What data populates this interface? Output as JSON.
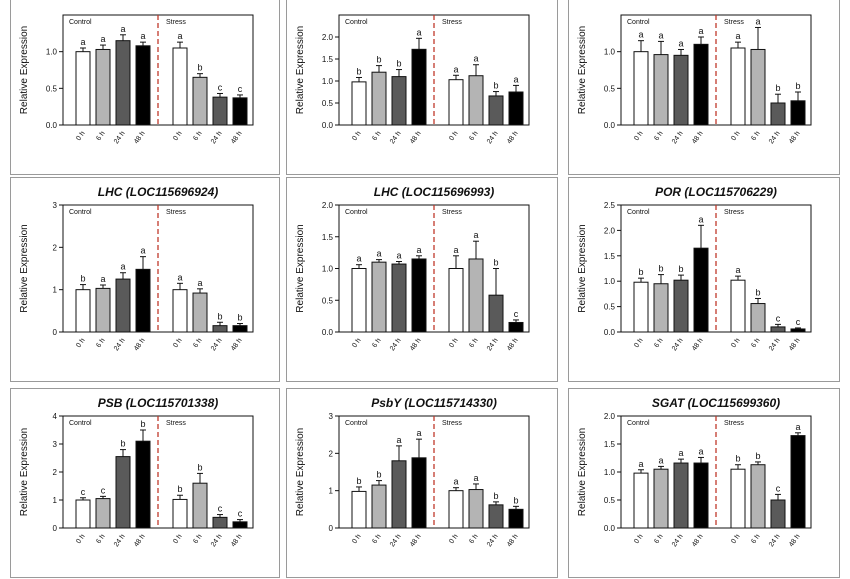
{
  "figure": {
    "colors": {
      "fill": [
        "#ffffff",
        "#b4b4b4",
        "#5a5a5a",
        "#000000"
      ],
      "divider": "#c0392b",
      "axis": "#111111"
    }
  },
  "chart_data": [
    {
      "type": "bar",
      "title": "",
      "ylabel": "Relative Expression",
      "ylim": [
        0,
        1.5
      ],
      "yticks": [
        "0.0",
        "0.5",
        "1.0"
      ],
      "groups": [
        {
          "name": "Control",
          "categories": [
            "0 h",
            "6 h",
            "24 h",
            "48 h"
          ],
          "values": [
            1.0,
            1.03,
            1.15,
            1.08
          ],
          "errors": [
            0.05,
            0.06,
            0.08,
            0.05
          ],
          "letters": [
            "a",
            "a",
            "a",
            "a"
          ]
        },
        {
          "name": "Stress",
          "categories": [
            "0 h",
            "6 h",
            "24 h",
            "48 h"
          ],
          "values": [
            1.05,
            0.65,
            0.38,
            0.37
          ],
          "errors": [
            0.08,
            0.05,
            0.05,
            0.04
          ],
          "letters": [
            "a",
            "b",
            "c",
            "c"
          ]
        }
      ]
    },
    {
      "type": "bar",
      "title": "",
      "ylabel": "Relative Expression",
      "ylim": [
        0,
        2.5
      ],
      "yticks": [
        "0.0",
        "0.5",
        "1.0",
        "1.5",
        "2.0"
      ],
      "groups": [
        {
          "name": "Control",
          "categories": [
            "0 h",
            "6 h",
            "24 h",
            "48 h"
          ],
          "values": [
            0.98,
            1.2,
            1.1,
            1.72
          ],
          "errors": [
            0.1,
            0.15,
            0.16,
            0.25
          ],
          "letters": [
            "b",
            "b",
            "b",
            "a"
          ]
        },
        {
          "name": "Stress",
          "categories": [
            "0 h",
            "6 h",
            "24 h",
            "48 h"
          ],
          "values": [
            1.03,
            1.12,
            0.66,
            0.75
          ],
          "errors": [
            0.1,
            0.25,
            0.1,
            0.15
          ],
          "letters": [
            "a",
            "a",
            "b",
            "a"
          ]
        }
      ]
    },
    {
      "type": "bar",
      "title": "",
      "ylabel": "Relative Expression",
      "ylim": [
        0,
        1.5
      ],
      "yticks": [
        "0.0",
        "0.5",
        "1.0"
      ],
      "groups": [
        {
          "name": "Control",
          "categories": [
            "0 h",
            "6 h",
            "24 h",
            "48 h"
          ],
          "values": [
            1.0,
            0.96,
            0.95,
            1.1
          ],
          "errors": [
            0.15,
            0.18,
            0.08,
            0.1
          ],
          "letters": [
            "a",
            "a",
            "a",
            "a"
          ]
        },
        {
          "name": "Stress",
          "categories": [
            "0 h",
            "6 h",
            "24 h",
            "48 h"
          ],
          "values": [
            1.05,
            1.03,
            0.3,
            0.33
          ],
          "errors": [
            0.08,
            0.3,
            0.12,
            0.12
          ],
          "letters": [
            "a",
            "a",
            "b",
            "b"
          ]
        }
      ]
    },
    {
      "type": "bar",
      "title": "LHC (LOC115696924)",
      "ylabel": "Relative Expression",
      "ylim": [
        0,
        3
      ],
      "yticks": [
        "0",
        "1",
        "2",
        "3"
      ],
      "groups": [
        {
          "name": "Control",
          "categories": [
            "0 h",
            "6 h",
            "24 h",
            "48 h"
          ],
          "values": [
            1.0,
            1.03,
            1.25,
            1.48
          ],
          "errors": [
            0.12,
            0.08,
            0.15,
            0.3
          ],
          "letters": [
            "b",
            "a",
            "a",
            "a"
          ]
        },
        {
          "name": "Stress",
          "categories": [
            "0 h",
            "6 h",
            "24 h",
            "48 h"
          ],
          "values": [
            1.0,
            0.92,
            0.15,
            0.15
          ],
          "errors": [
            0.15,
            0.1,
            0.08,
            0.05
          ],
          "letters": [
            "a",
            "a",
            "b",
            "b"
          ]
        }
      ]
    },
    {
      "type": "bar",
      "title": "LHC (LOC115696993)",
      "ylabel": "Relative Expression",
      "ylim": [
        0,
        2.0
      ],
      "yticks": [
        "0.0",
        "0.5",
        "1.0",
        "1.5",
        "2.0"
      ],
      "groups": [
        {
          "name": "Control",
          "categories": [
            "0 h",
            "6 h",
            "24 h",
            "48 h"
          ],
          "values": [
            1.0,
            1.1,
            1.07,
            1.15
          ],
          "errors": [
            0.06,
            0.04,
            0.04,
            0.05
          ],
          "letters": [
            "a",
            "a",
            "a",
            "a"
          ]
        },
        {
          "name": "Stress",
          "categories": [
            "0 h",
            "6 h",
            "24 h",
            "48 h"
          ],
          "values": [
            1.0,
            1.15,
            0.58,
            0.15
          ],
          "errors": [
            0.2,
            0.28,
            0.42,
            0.04
          ],
          "letters": [
            "a",
            "a",
            "b",
            "c"
          ]
        }
      ]
    },
    {
      "type": "bar",
      "title": "POR (LOC115706229)",
      "ylabel": "Relative Expression",
      "ylim": [
        0,
        2.5
      ],
      "yticks": [
        "0.0",
        "0.5",
        "1.0",
        "1.5",
        "2.0",
        "2.5"
      ],
      "groups": [
        {
          "name": "Control",
          "categories": [
            "0 h",
            "6 h",
            "24 h",
            "48 h"
          ],
          "values": [
            0.98,
            0.95,
            1.02,
            1.65
          ],
          "errors": [
            0.08,
            0.18,
            0.1,
            0.45
          ],
          "letters": [
            "b",
            "b",
            "b",
            "a"
          ]
        },
        {
          "name": "Stress",
          "categories": [
            "0 h",
            "6 h",
            "24 h",
            "48 h"
          ],
          "values": [
            1.02,
            0.56,
            0.1,
            0.06
          ],
          "errors": [
            0.08,
            0.1,
            0.05,
            0.02
          ],
          "letters": [
            "a",
            "b",
            "c",
            "c"
          ]
        }
      ]
    },
    {
      "type": "bar",
      "title": "PSB (LOC115701338)",
      "ylabel": "Relative Expression",
      "ylim": [
        0,
        4
      ],
      "yticks": [
        "0",
        "1",
        "2",
        "3",
        "4"
      ],
      "groups": [
        {
          "name": "Control",
          "categories": [
            "0 h",
            "6 h",
            "24 h",
            "48 h"
          ],
          "values": [
            1.0,
            1.05,
            2.55,
            3.1
          ],
          "errors": [
            0.08,
            0.08,
            0.25,
            0.4
          ],
          "letters": [
            "c",
            "c",
            "b",
            "b"
          ]
        },
        {
          "name": "Stress",
          "categories": [
            "0 h",
            "6 h",
            "24 h",
            "48 h"
          ],
          "values": [
            1.02,
            1.6,
            0.38,
            0.22
          ],
          "errors": [
            0.15,
            0.35,
            0.1,
            0.08
          ],
          "letters": [
            "b",
            "b",
            "c",
            "c"
          ]
        }
      ]
    },
    {
      "type": "bar",
      "title": "PsbY (LOC115714330)",
      "ylabel": "Relative Expression",
      "ylim": [
        0,
        3
      ],
      "yticks": [
        "0",
        "1",
        "2",
        "3"
      ],
      "groups": [
        {
          "name": "Control",
          "categories": [
            "0 h",
            "6 h",
            "24 h",
            "48 h"
          ],
          "values": [
            0.98,
            1.15,
            1.8,
            1.88
          ],
          "errors": [
            0.12,
            0.12,
            0.4,
            0.5
          ],
          "letters": [
            "b",
            "b",
            "a",
            "a"
          ]
        },
        {
          "name": "Stress",
          "categories": [
            "0 h",
            "6 h",
            "24 h",
            "48 h"
          ],
          "values": [
            1.0,
            1.03,
            0.62,
            0.5
          ],
          "errors": [
            0.08,
            0.15,
            0.08,
            0.08
          ],
          "letters": [
            "a",
            "a",
            "b",
            "b"
          ]
        }
      ]
    },
    {
      "type": "bar",
      "title": "SGAT (LOC115699360)",
      "ylabel": "Relative Expression",
      "ylim": [
        0,
        2.0
      ],
      "yticks": [
        "0.0",
        "0.5",
        "1.0",
        "1.5",
        "2.0"
      ],
      "groups": [
        {
          "name": "Control",
          "categories": [
            "0 h",
            "6 h",
            "24 h",
            "48 h"
          ],
          "values": [
            0.98,
            1.05,
            1.16,
            1.16
          ],
          "errors": [
            0.06,
            0.05,
            0.07,
            0.1
          ],
          "letters": [
            "a",
            "a",
            "a",
            "a"
          ]
        },
        {
          "name": "Stress",
          "categories": [
            "0 h",
            "6 h",
            "24 h",
            "48 h"
          ],
          "values": [
            1.05,
            1.13,
            0.5,
            1.65
          ],
          "errors": [
            0.08,
            0.05,
            0.1,
            0.05
          ],
          "letters": [
            "b",
            "b",
            "c",
            "a"
          ]
        }
      ]
    }
  ]
}
